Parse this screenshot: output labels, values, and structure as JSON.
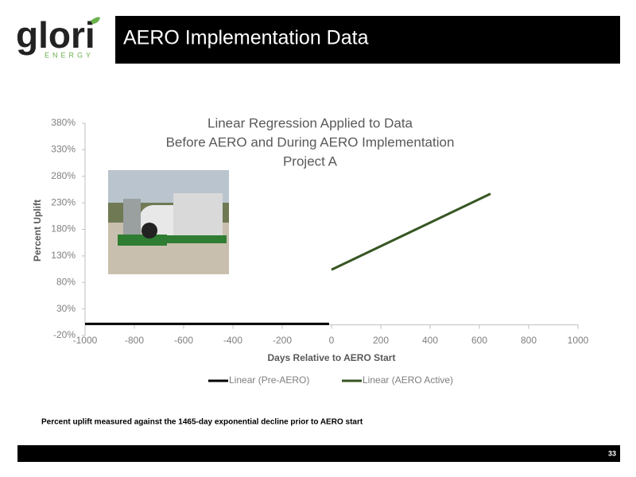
{
  "header": {
    "logo_text": "glori",
    "logo_subtext": "ENERGY",
    "title": "AERO Implementation Data"
  },
  "chart_data": {
    "type": "line",
    "title_lines": [
      "Linear Regression Applied to Data",
      "Before AERO and During AERO Implementation",
      "Project A"
    ],
    "x_label": "Days Relative to AERO Start",
    "y_label": "Percent Uplift",
    "xlim": [
      -1000,
      1000
    ],
    "xticks": [
      -1000,
      -800,
      -600,
      -400,
      -200,
      0,
      200,
      400,
      600,
      800,
      1000
    ],
    "ylim": [
      -20,
      380
    ],
    "yticks": [
      {
        "value": -20,
        "label": "-20%"
      },
      {
        "value": 30,
        "label": "30%"
      },
      {
        "value": 80,
        "label": "80%"
      },
      {
        "value": 130,
        "label": "130%"
      },
      {
        "value": 180,
        "label": "180%"
      },
      {
        "value": 230,
        "label": "230%"
      },
      {
        "value": 280,
        "label": "280%"
      },
      {
        "value": 330,
        "label": "330%"
      },
      {
        "value": 380,
        "label": "380%"
      }
    ],
    "series": [
      {
        "name": "Linear (Pre-AERO)",
        "color": "#000000",
        "x": [
          -1000,
          -10
        ],
        "values": [
          2,
          2
        ]
      },
      {
        "name": "Linear (AERO Active)",
        "color": "#375623",
        "x": [
          0,
          645
        ],
        "values": [
          104,
          247
        ]
      }
    ],
    "legend": "bottom"
  },
  "footnote": "Percent uplift measured against the 1465-day exponential decline prior to AERO start",
  "page_number": "33"
}
